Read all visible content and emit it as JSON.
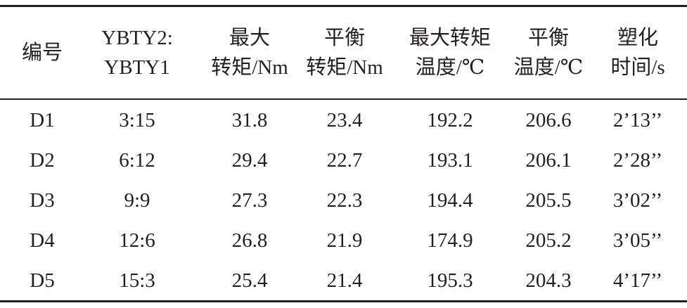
{
  "table": {
    "headers": [
      [
        "编号"
      ],
      [
        "YBTY2:",
        "YBTY1"
      ],
      [
        "最大",
        "转矩/Nm"
      ],
      [
        "平衡",
        "转矩/Nm"
      ],
      [
        "最大转矩",
        "温度/℃"
      ],
      [
        "平衡",
        "温度/℃"
      ],
      [
        "塑化",
        "时间/s"
      ]
    ],
    "rows": [
      [
        "D1",
        "3:15",
        "31.8",
        "23.4",
        "192.2",
        "206.6",
        "2’13’’"
      ],
      [
        "D2",
        "6:12",
        "29.4",
        "22.7",
        "193.1",
        "206.1",
        "2’28’’"
      ],
      [
        "D3",
        "9:9",
        "27.3",
        "22.3",
        "194.4",
        "205.5",
        "3’02’’"
      ],
      [
        "D4",
        "12:6",
        "26.8",
        "21.9",
        "174.9",
        "205.2",
        "3’05’’"
      ],
      [
        "D5",
        "15:3",
        "25.4",
        "21.4",
        "195.3",
        "204.3",
        "4’17’’"
      ]
    ]
  }
}
